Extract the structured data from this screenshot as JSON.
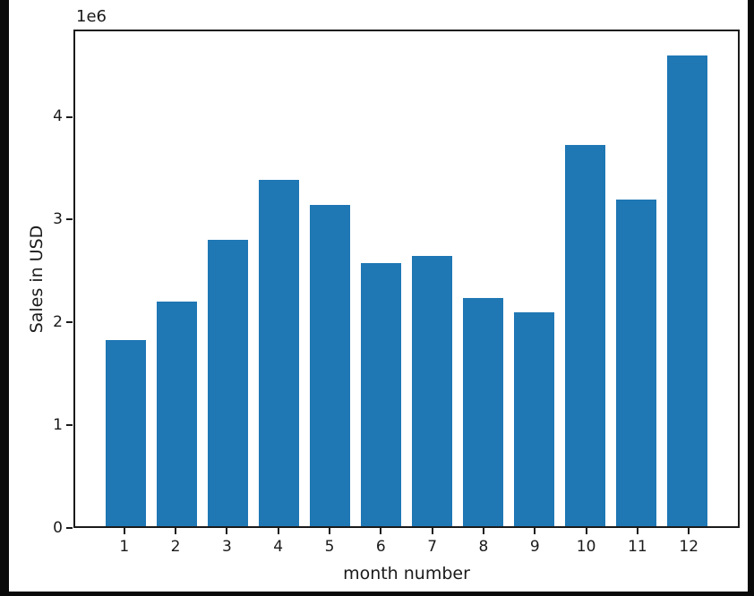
{
  "window": {
    "background_color": "#0a0a0a",
    "figure_background_color": "#ffffff",
    "axis_color": "#1a1a1a"
  },
  "chart_data": {
    "type": "bar",
    "title": "",
    "xlabel": "month number",
    "ylabel": "Sales in USD",
    "y_offset_text": "1e6",
    "categories": [
      "1",
      "2",
      "3",
      "4",
      "5",
      "6",
      "7",
      "8",
      "9",
      "10",
      "11",
      "12"
    ],
    "values": [
      1820000,
      2200000,
      2810000,
      3390000,
      3150000,
      2580000,
      2650000,
      2240000,
      2100000,
      3740000,
      3200000,
      4610000
    ],
    "bar_color": "#1f77b4",
    "bar_width_units": 0.8,
    "xlim": [
      0.01,
      12.99
    ],
    "ylim": [
      0,
      4850000
    ],
    "yticks": [
      {
        "value": 0,
        "label": "0"
      },
      {
        "value": 1000000,
        "label": "1"
      },
      {
        "value": 2000000,
        "label": "2"
      },
      {
        "value": 3000000,
        "label": "3"
      },
      {
        "value": 4000000,
        "label": "4"
      }
    ],
    "grid": false,
    "legend": "none"
  }
}
